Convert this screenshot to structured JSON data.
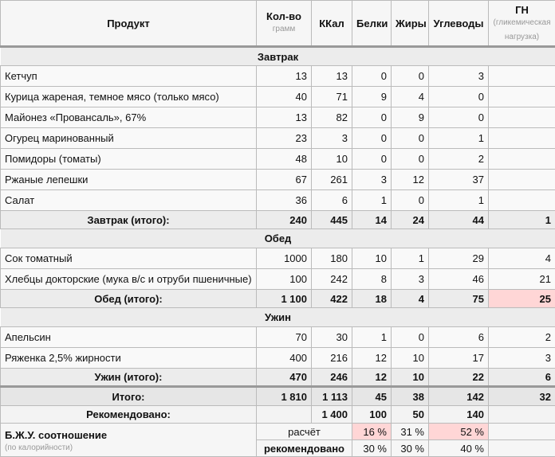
{
  "header": {
    "product": "Продукт",
    "qty": "Кол-во",
    "qty_unit": "грамм",
    "kcal": "ККал",
    "protein": "Белки",
    "fat": "Жиры",
    "carbs": "Углеводы",
    "gn": "ГН",
    "gn_note": "(гликемическая нагрузка)"
  },
  "sections": [
    {
      "title": "Завтрак",
      "items": [
        {
          "name": "Кетчуп",
          "qty": "13",
          "kcal": "13",
          "p": "0",
          "f": "0",
          "c": "3",
          "gn": ""
        },
        {
          "name": "Курица жареная, темное мясо (только мясо)",
          "qty": "40",
          "kcal": "71",
          "p": "9",
          "f": "4",
          "c": "0",
          "gn": ""
        },
        {
          "name": "Майонез «Провансаль», 67%",
          "qty": "13",
          "kcal": "82",
          "p": "0",
          "f": "9",
          "c": "0",
          "gn": ""
        },
        {
          "name": "Огурец маринованный",
          "qty": "23",
          "kcal": "3",
          "p": "0",
          "f": "0",
          "c": "1",
          "gn": ""
        },
        {
          "name": "Помидоры (томаты)",
          "qty": "48",
          "kcal": "10",
          "p": "0",
          "f": "0",
          "c": "2",
          "gn": ""
        },
        {
          "name": "Ржаные лепешки",
          "qty": "67",
          "kcal": "261",
          "p": "3",
          "f": "12",
          "c": "37",
          "gn": ""
        },
        {
          "name": "Салат",
          "qty": "36",
          "kcal": "6",
          "p": "1",
          "f": "0",
          "c": "1",
          "gn": ""
        }
      ],
      "total": {
        "label": "Завтрак (итого):",
        "qty": "240",
        "kcal": "445",
        "p": "14",
        "f": "24",
        "c": "44",
        "gn": "1"
      }
    },
    {
      "title": "Обед",
      "items": [
        {
          "name": "Сок томатный",
          "qty": "1000",
          "kcal": "180",
          "p": "10",
          "f": "1",
          "c": "29",
          "gn": "4"
        },
        {
          "name": "Хлебцы докторские (мука в/с и отруби пшеничные)",
          "qty": "100",
          "kcal": "242",
          "p": "8",
          "f": "3",
          "c": "46",
          "gn": "21"
        }
      ],
      "total": {
        "label": "Обед (итого):",
        "qty": "1 100",
        "kcal": "422",
        "p": "18",
        "f": "4",
        "c": "75",
        "gn": "25"
      }
    },
    {
      "title": "Ужин",
      "items": [
        {
          "name": "Апельсин",
          "qty": "70",
          "kcal": "30",
          "p": "1",
          "f": "0",
          "c": "6",
          "gn": "2"
        },
        {
          "name": "Ряженка 2,5% жирности",
          "qty": "400",
          "kcal": "216",
          "p": "12",
          "f": "10",
          "c": "17",
          "gn": "3"
        }
      ],
      "total": {
        "label": "Ужин (итого):",
        "qty": "470",
        "kcal": "246",
        "p": "12",
        "f": "10",
        "c": "22",
        "gn": "6"
      }
    }
  ],
  "grand": {
    "label": "Итого:",
    "qty": "1 810",
    "kcal": "1 113",
    "p": "45",
    "f": "38",
    "c": "142",
    "gn": "32"
  },
  "recommended": {
    "label": "Рекомендовано:",
    "kcal": "1 400",
    "p": "100",
    "f": "50",
    "c": "140"
  },
  "ratio": {
    "label": "Б.Ж.У. соотношение",
    "note": "(по калорийности)",
    "calc_label": "расчёт",
    "calc": {
      "p": "16 %",
      "f": "31 %",
      "c": "52 %"
    },
    "rec_label": "рекомендовано",
    "rec": {
      "p": "30 %",
      "f": "30 %",
      "c": "40 %"
    }
  },
  "highlight_color": "#ffd6d6"
}
